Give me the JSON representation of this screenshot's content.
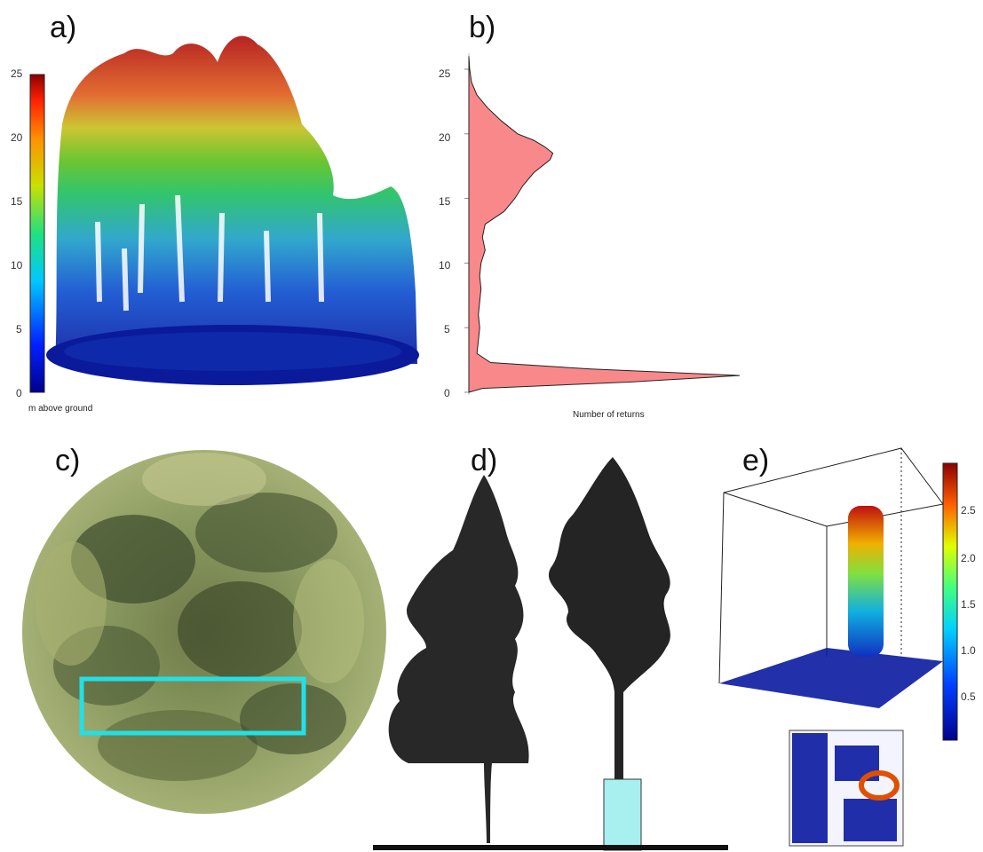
{
  "panels": {
    "a": {
      "label": "a)",
      "colorbar_label": "m above ground",
      "ticks": [
        "0",
        "5",
        "10",
        "15",
        "20",
        "25"
      ]
    },
    "b": {
      "label": "b)",
      "xlabel": "Number of returns",
      "ticks": [
        "0",
        "5",
        "10",
        "15",
        "20",
        "25"
      ]
    },
    "c": {
      "label": "c)"
    },
    "d": {
      "label": "d)"
    },
    "e": {
      "label": "e)",
      "ticks": [
        "0.5",
        "1.0",
        "1.5",
        "2.0",
        "2.5"
      ]
    }
  },
  "chart_data": [
    {
      "type": "area",
      "xlabel": "Number of returns",
      "ylabel": "",
      "ylim": [
        0,
        25
      ],
      "y": [
        0,
        0.3,
        0.8,
        1.3,
        1.8,
        2.3,
        3,
        4,
        5,
        6,
        7,
        8,
        9,
        10,
        11,
        12,
        13,
        14,
        15,
        16,
        17,
        18,
        18.5,
        19,
        19.5,
        20,
        21,
        22,
        23,
        24,
        25,
        26
      ],
      "x": [
        0.0,
        0.05,
        0.6,
        1.0,
        0.45,
        0.08,
        0.03,
        0.035,
        0.04,
        0.035,
        0.04,
        0.045,
        0.04,
        0.045,
        0.06,
        0.05,
        0.06,
        0.13,
        0.17,
        0.2,
        0.24,
        0.3,
        0.31,
        0.28,
        0.24,
        0.18,
        0.12,
        0.07,
        0.03,
        0.01,
        0.003,
        0.0
      ]
    }
  ]
}
